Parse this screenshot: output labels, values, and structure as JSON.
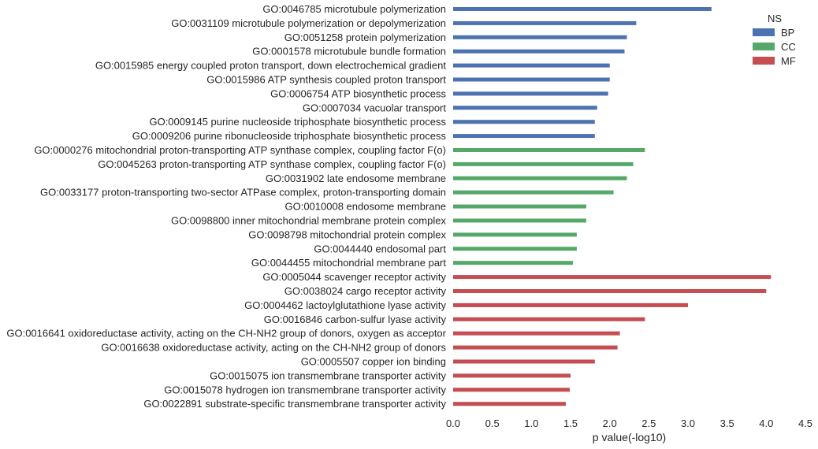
{
  "chart_data": {
    "type": "bar",
    "orientation": "horizontal",
    "xlabel": "p value(-log10)",
    "ylabel": "",
    "xlim": [
      0,
      4.5
    ],
    "x_ticks": [
      "0.0",
      "0.5",
      "1.0",
      "1.5",
      "2.0",
      "2.5",
      "3.0",
      "3.5",
      "4.0",
      "4.5"
    ],
    "grid": false,
    "legend": {
      "title": "NS",
      "placement": "top-right",
      "entries": [
        {
          "name": "BP",
          "color": "#4C72B0"
        },
        {
          "name": "CC",
          "color": "#55A868"
        },
        {
          "name": "MF",
          "color": "#C44E52"
        }
      ]
    },
    "categories": [
      {
        "label": "GO:0046785 microtubule polymerization",
        "ns": "BP",
        "value": 3.3
      },
      {
        "label": "GO:0031109 microtubule polymerization or depolymerization",
        "ns": "BP",
        "value": 2.34
      },
      {
        "label": "GO:0051258 protein polymerization",
        "ns": "BP",
        "value": 2.22
      },
      {
        "label": "GO:0001578 microtubule bundle formation",
        "ns": "BP",
        "value": 2.19
      },
      {
        "label": "GO:0015985 energy coupled proton transport, down electrochemical gradient",
        "ns": "BP",
        "value": 2.0
      },
      {
        "label": "GO:0015986 ATP synthesis coupled proton transport",
        "ns": "BP",
        "value": 2.0
      },
      {
        "label": "GO:0006754 ATP biosynthetic process",
        "ns": "BP",
        "value": 1.98
      },
      {
        "label": "GO:0007034 vacuolar transport",
        "ns": "BP",
        "value": 1.84
      },
      {
        "label": "GO:0009145 purine nucleoside triphosphate biosynthetic process",
        "ns": "BP",
        "value": 1.81
      },
      {
        "label": "GO:0009206 purine ribonucleoside triphosphate biosynthetic process",
        "ns": "BP",
        "value": 1.81
      },
      {
        "label": "GO:0000276 mitochondrial proton-transporting ATP synthase complex, coupling factor F(o)",
        "ns": "CC",
        "value": 2.45
      },
      {
        "label": "GO:0045263 proton-transporting ATP synthase complex, coupling factor F(o)",
        "ns": "CC",
        "value": 2.3
      },
      {
        "label": "GO:0031902 late endosome membrane",
        "ns": "CC",
        "value": 2.22
      },
      {
        "label": "GO:0033177 proton-transporting two-sector ATPase complex, proton-transporting domain",
        "ns": "CC",
        "value": 2.05
      },
      {
        "label": "GO:0010008 endosome membrane",
        "ns": "CC",
        "value": 1.7
      },
      {
        "label": "GO:0098800 inner mitochondrial membrane protein complex",
        "ns": "CC",
        "value": 1.7
      },
      {
        "label": "GO:0098798 mitochondrial protein complex",
        "ns": "CC",
        "value": 1.58
      },
      {
        "label": "GO:0044440 endosomal part",
        "ns": "CC",
        "value": 1.58
      },
      {
        "label": "GO:0044455 mitochondrial membrane part",
        "ns": "CC",
        "value": 1.53
      },
      {
        "label": "GO:0005044 scavenger receptor activity",
        "ns": "MF",
        "value": 4.06
      },
      {
        "label": "GO:0038024 cargo receptor activity",
        "ns": "MF",
        "value": 4.0
      },
      {
        "label": "GO:0004462 lactoylglutathione lyase activity",
        "ns": "MF",
        "value": 3.0
      },
      {
        "label": "GO:0016846 carbon-sulfur lyase activity",
        "ns": "MF",
        "value": 2.45
      },
      {
        "label": "GO:0016641 oxidoreductase activity, acting on the CH-NH2 group of donors, oxygen as acceptor",
        "ns": "MF",
        "value": 2.13
      },
      {
        "label": "GO:0016638 oxidoreductase activity, acting on the CH-NH2 group of donors",
        "ns": "MF",
        "value": 2.1
      },
      {
        "label": "GO:0005507 copper ion binding",
        "ns": "MF",
        "value": 1.81
      },
      {
        "label": "GO:0015075 ion transmembrane transporter activity",
        "ns": "MF",
        "value": 1.5
      },
      {
        "label": "GO:0015078 hydrogen ion transmembrane transporter activity",
        "ns": "MF",
        "value": 1.49
      },
      {
        "label": "GO:0022891 substrate-specific transmembrane transporter activity",
        "ns": "MF",
        "value": 1.44
      }
    ]
  }
}
